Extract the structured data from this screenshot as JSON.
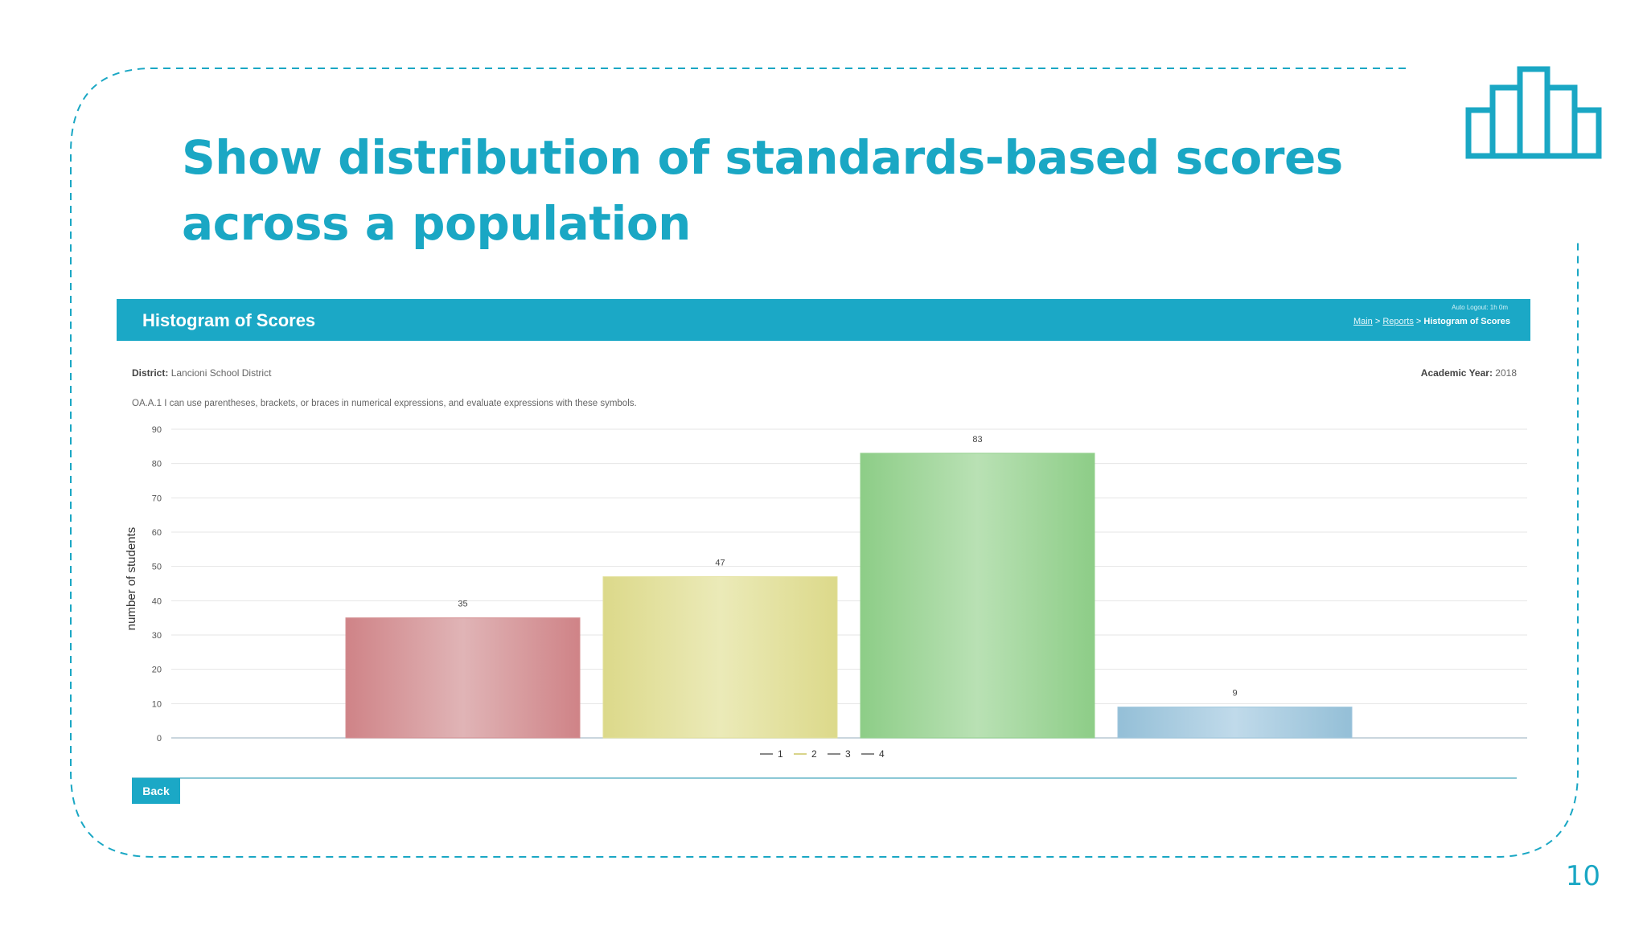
{
  "slide": {
    "title_line1": "Show distribution of standards-based scores",
    "title_line2": "across a population",
    "icon": "bar-chart-icon",
    "page_number": "10",
    "accent_color": "#1aa7c4"
  },
  "panel": {
    "header_title": "Histogram of Scores",
    "logged_in_text": "Auto Logout: 1h 0m",
    "breadcrumb": {
      "main": "Main",
      "sep1": " > ",
      "reports": "Reports",
      "sep2": " > ",
      "current": "Histogram of Scores"
    },
    "district_label": "District:",
    "district_value": "Lancioni School District",
    "year_label": "Academic Year:",
    "year_value": "2018",
    "standard_text": "OA.A.1 I can use parentheses, brackets, or braces in numerical expressions, and evaluate expressions with these symbols.",
    "back_label": "Back",
    "header_color": "#1ba8c6"
  },
  "chart_data": {
    "type": "bar",
    "categories": [
      "1",
      "2",
      "3",
      "4"
    ],
    "values": [
      35,
      47,
      83,
      9
    ],
    "ylabel": "number of students",
    "ylim": [
      0,
      90
    ],
    "yticks": [
      0,
      10,
      20,
      30,
      40,
      50,
      60,
      70,
      80,
      90
    ],
    "colors": [
      "#d48f92",
      "#e2e09a",
      "#94d18e",
      "#9fc6dc"
    ],
    "legend": [
      "1",
      "2",
      "3",
      "4"
    ],
    "legend_position": "bottom-center",
    "grid": true,
    "data_labels": true
  }
}
